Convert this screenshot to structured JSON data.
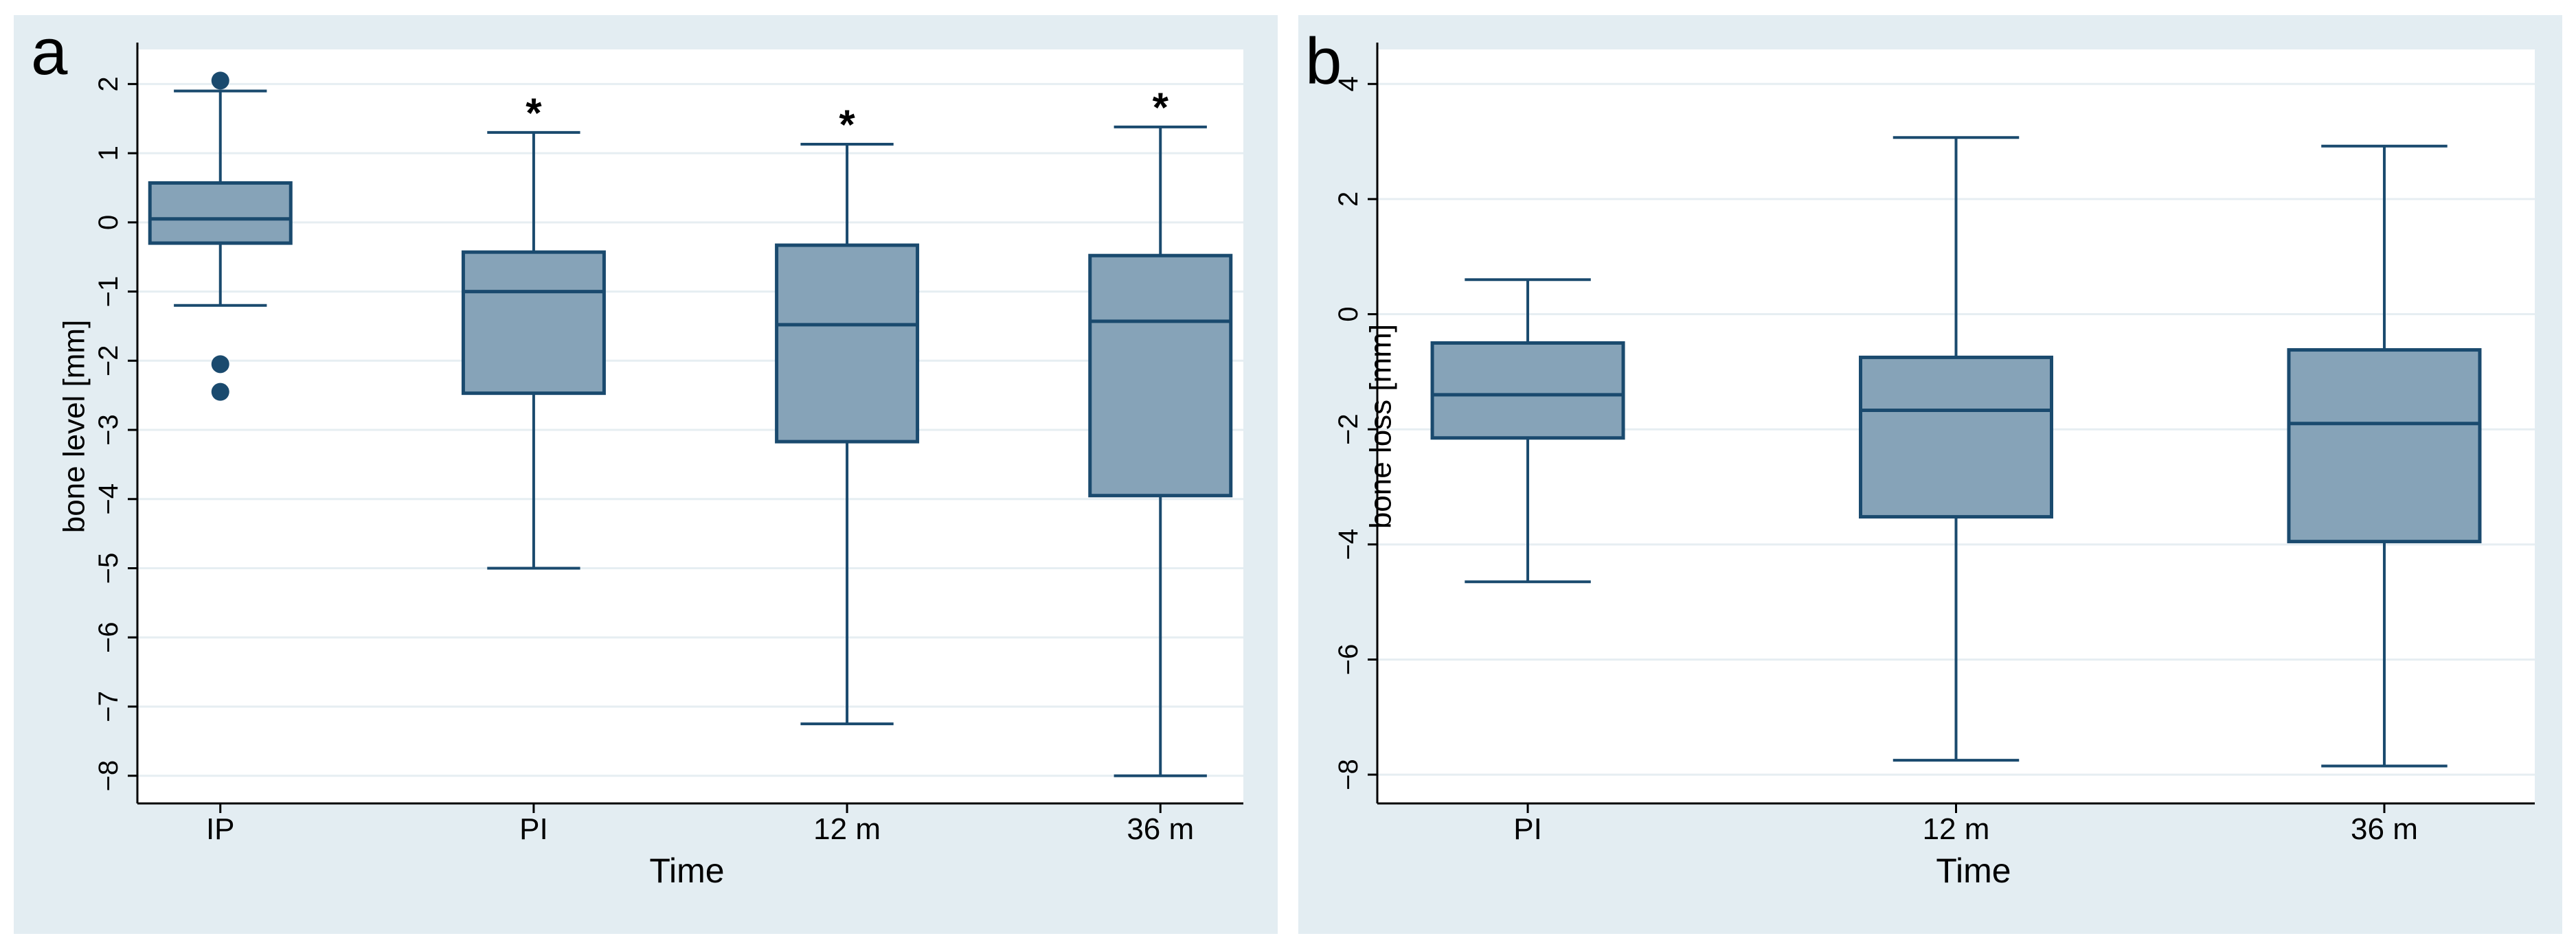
{
  "chart_data": [
    {
      "panel": "a",
      "type": "box",
      "title": "",
      "xlabel": "Time",
      "ylabel": "bone level [mm]",
      "ylim": [
        -8.4,
        2.5
      ],
      "yticks": [
        2,
        1,
        0,
        -1,
        -2,
        -3,
        -4,
        -5,
        -6,
        -7,
        -8
      ],
      "categories": [
        "IP",
        "PI",
        "12 m",
        "36 m"
      ],
      "boxes": [
        {
          "category": "IP",
          "whisker_low": -1.2,
          "q1": -0.3,
          "median": 0.05,
          "q3": 0.57,
          "whisker_high": 1.9,
          "outliers": [
            2.05,
            -2.05,
            -2.45
          ],
          "star": ""
        },
        {
          "category": "PI",
          "whisker_low": -5.0,
          "q1": -2.47,
          "median": -1.0,
          "q3": -0.43,
          "whisker_high": 1.3,
          "outliers": [],
          "star": "*"
        },
        {
          "category": "12 m",
          "whisker_low": -7.25,
          "q1": -3.17,
          "median": -1.48,
          "q3": -0.33,
          "whisker_high": 1.13,
          "outliers": [],
          "star": "*"
        },
        {
          "category": "36 m",
          "whisker_low": -8.0,
          "q1": -3.95,
          "median": -1.43,
          "q3": -0.48,
          "whisker_high": 1.38,
          "outliers": [],
          "star": "*"
        }
      ]
    },
    {
      "panel": "b",
      "type": "box",
      "title": "",
      "xlabel": "Time",
      "ylabel": "bone loss [mm]",
      "ylim": [
        -8.5,
        4.6
      ],
      "yticks": [
        4,
        2,
        0,
        -2,
        -4,
        -6,
        -8
      ],
      "categories": [
        "PI",
        "12 m",
        "36 m"
      ],
      "boxes": [
        {
          "category": "PI",
          "whisker_low": -4.65,
          "q1": -2.15,
          "median": -1.4,
          "q3": -0.5,
          "whisker_high": 0.6,
          "outliers": [],
          "star": ""
        },
        {
          "category": "12 m",
          "whisker_low": -7.75,
          "q1": -3.52,
          "median": -1.67,
          "q3": -0.75,
          "whisker_high": 3.07,
          "outliers": [],
          "star": ""
        },
        {
          "category": "36 m",
          "whisker_low": -7.85,
          "q1": -3.95,
          "median": -1.9,
          "q3": -0.62,
          "whisker_high": 2.92,
          "outliers": [],
          "star": ""
        }
      ]
    }
  ]
}
